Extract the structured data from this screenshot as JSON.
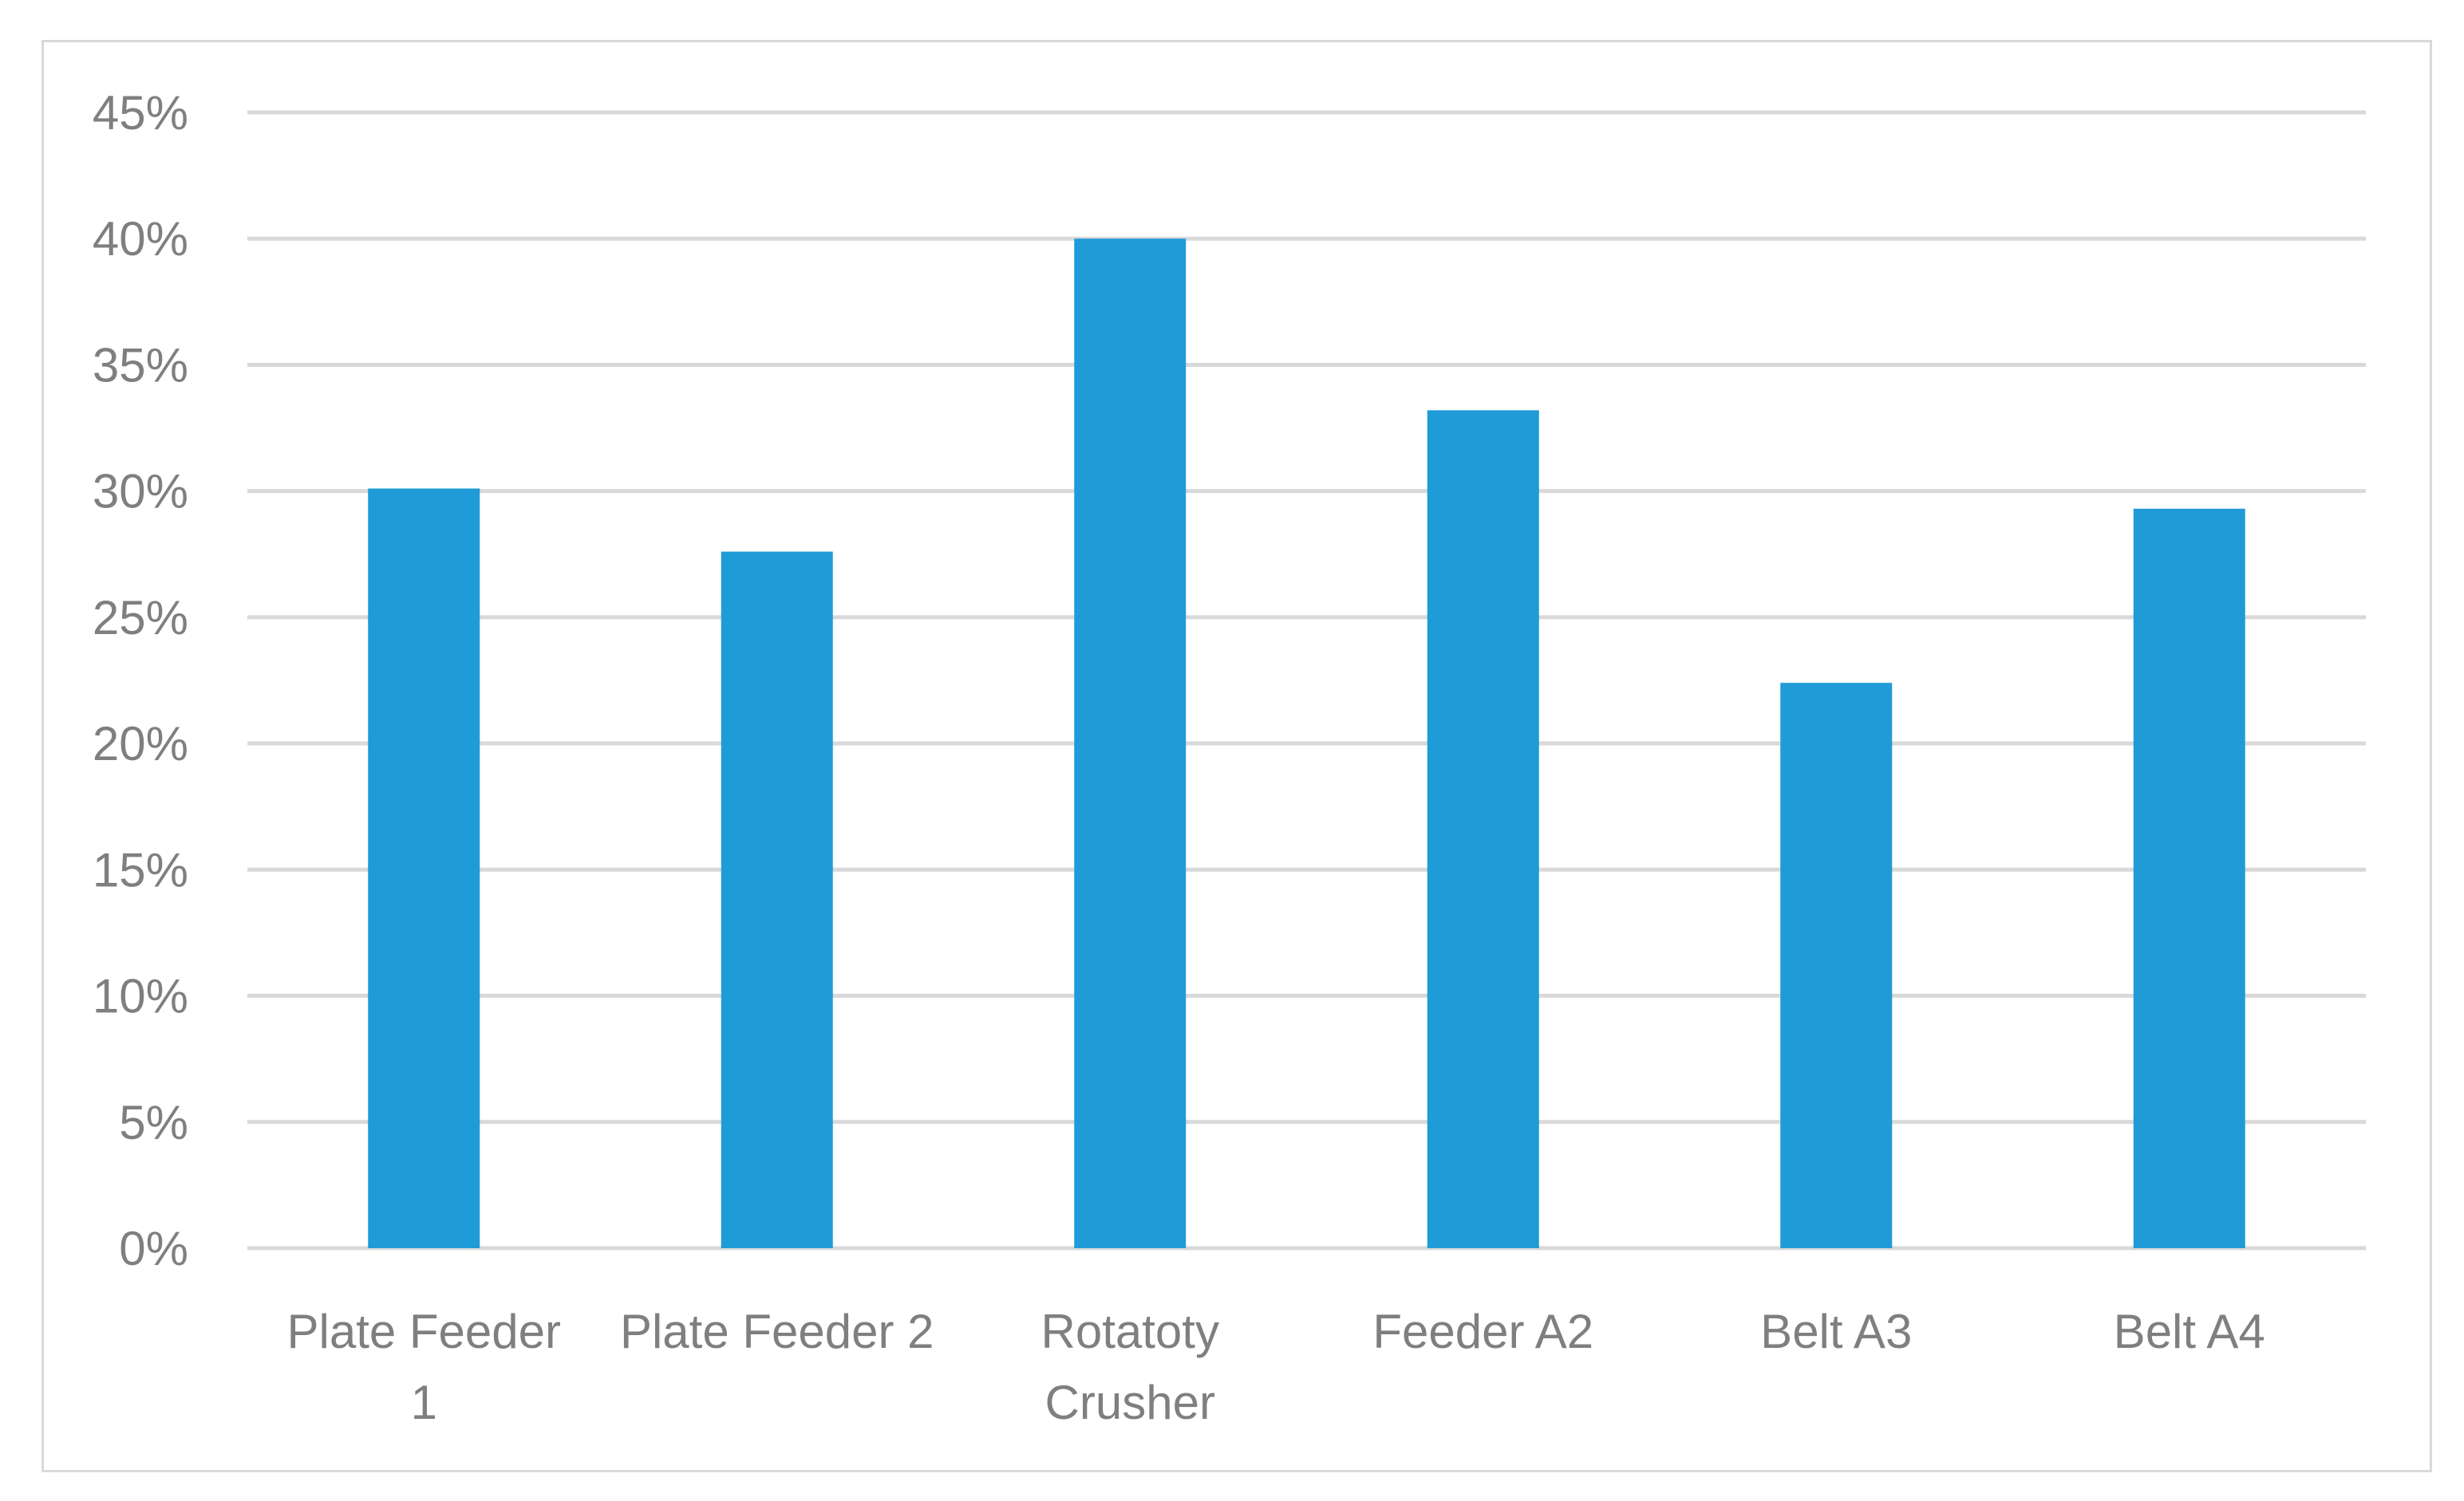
{
  "chart_data": {
    "type": "bar",
    "categories": [
      [
        "Plate Feeder",
        "1"
      ],
      [
        "Plate Feeder 2"
      ],
      [
        "Rotatoty",
        "Crusher"
      ],
      [
        "Feeder A2"
      ],
      [
        "Belt A3"
      ],
      [
        "Belt A4"
      ]
    ],
    "values": [
      30.1,
      27.6,
      40.0,
      33.2,
      22.4,
      29.3
    ],
    "value_unit": "%",
    "ylim": [
      0,
      45
    ],
    "yticks": [
      0,
      5,
      10,
      15,
      20,
      25,
      30,
      35,
      40,
      45
    ],
    "ytick_labels": [
      "0%",
      "5%",
      "10%",
      "15%",
      "20%",
      "25%",
      "30%",
      "35%",
      "40%",
      "45%"
    ],
    "title": "",
    "xlabel": "",
    "ylabel": "",
    "grid": true,
    "legend": "none",
    "bar_color": "#1f9bd7",
    "grid_color": "#d9d9d9",
    "text_color": "#7f7f7f"
  }
}
